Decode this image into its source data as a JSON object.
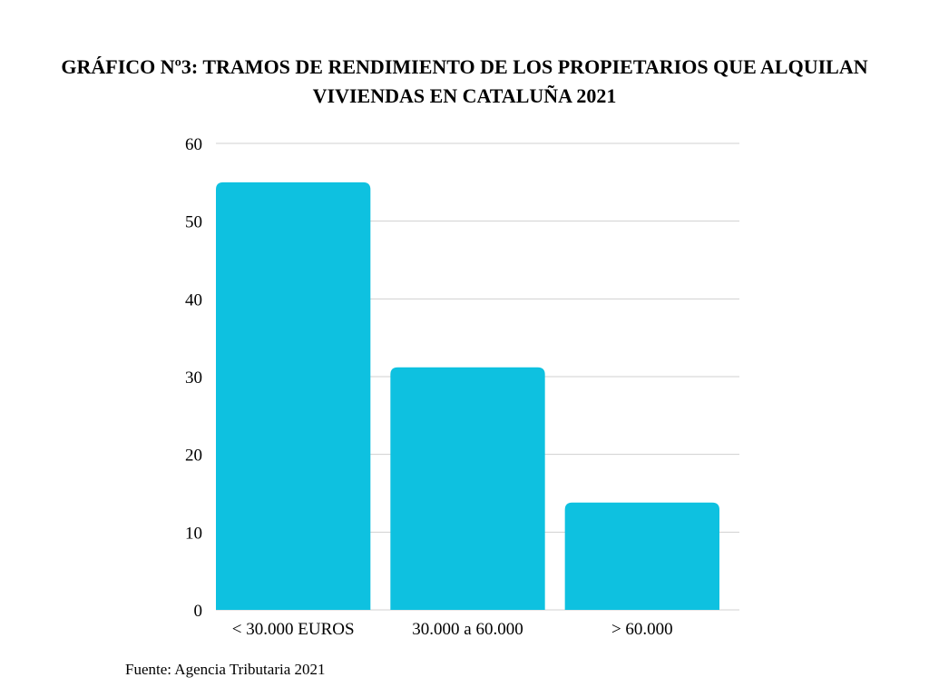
{
  "chart_data": {
    "type": "bar",
    "title": "GRÁFICO Nº3: TRAMOS DE RENDIMIENTO DE LOS PROPIETARIOS QUE ALQUILAN VIVIENDAS EN CATALUÑA 2021",
    "categories": [
      "< 30.000 EUROS",
      "30.000 a 60.000",
      "> 60.000"
    ],
    "values": [
      55,
      31.2,
      13.8
    ],
    "xlabel": "",
    "ylabel": "",
    "ylim": [
      0,
      60
    ],
    "yticks": [
      0,
      10,
      20,
      30,
      40,
      50,
      60
    ],
    "grid": true,
    "bar_color": "#0EC1E0",
    "grid_color": "#D0D0D0"
  },
  "source": "Fuente: Agencia Tributaria 2021"
}
